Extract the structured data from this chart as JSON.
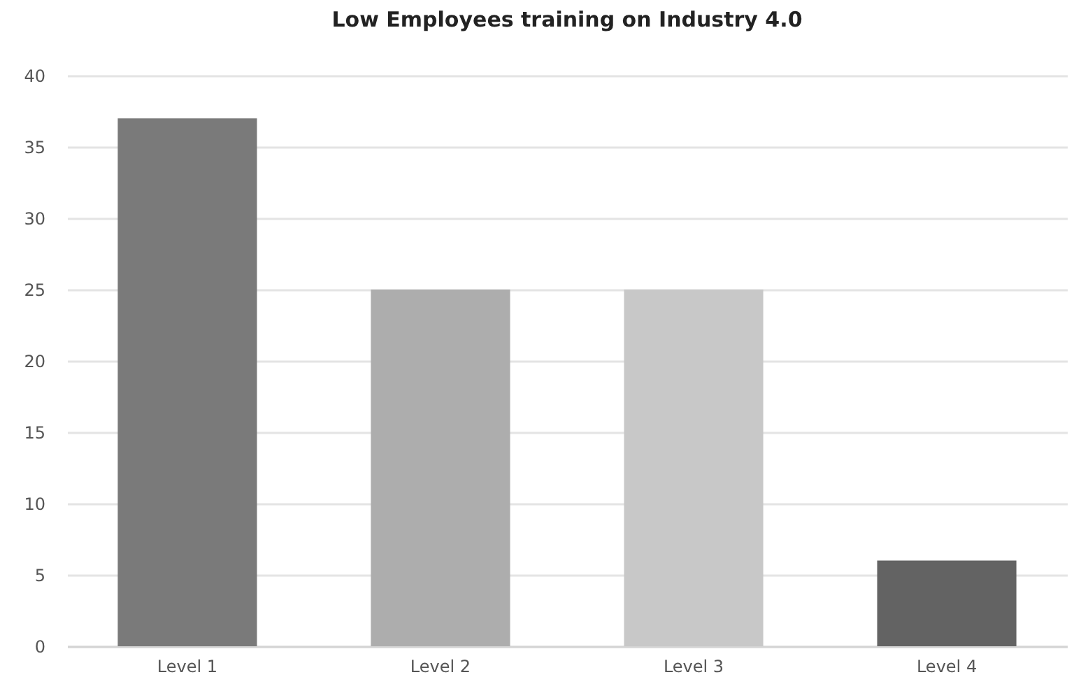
{
  "chart_data": {
    "type": "bar",
    "title": "Low Employees training on Industry 4.0",
    "categories": [
      "Level 1",
      "Level 2",
      "Level 3",
      "Level 4"
    ],
    "values": [
      37,
      25,
      25,
      6
    ],
    "colors": [
      "#7a7a7a",
      "#adadad",
      "#c8c8c8",
      "#636363"
    ],
    "ylim": [
      0,
      40
    ],
    "yticks": [
      0,
      5,
      10,
      15,
      20,
      25,
      30,
      35,
      40
    ],
    "grid": "y"
  }
}
